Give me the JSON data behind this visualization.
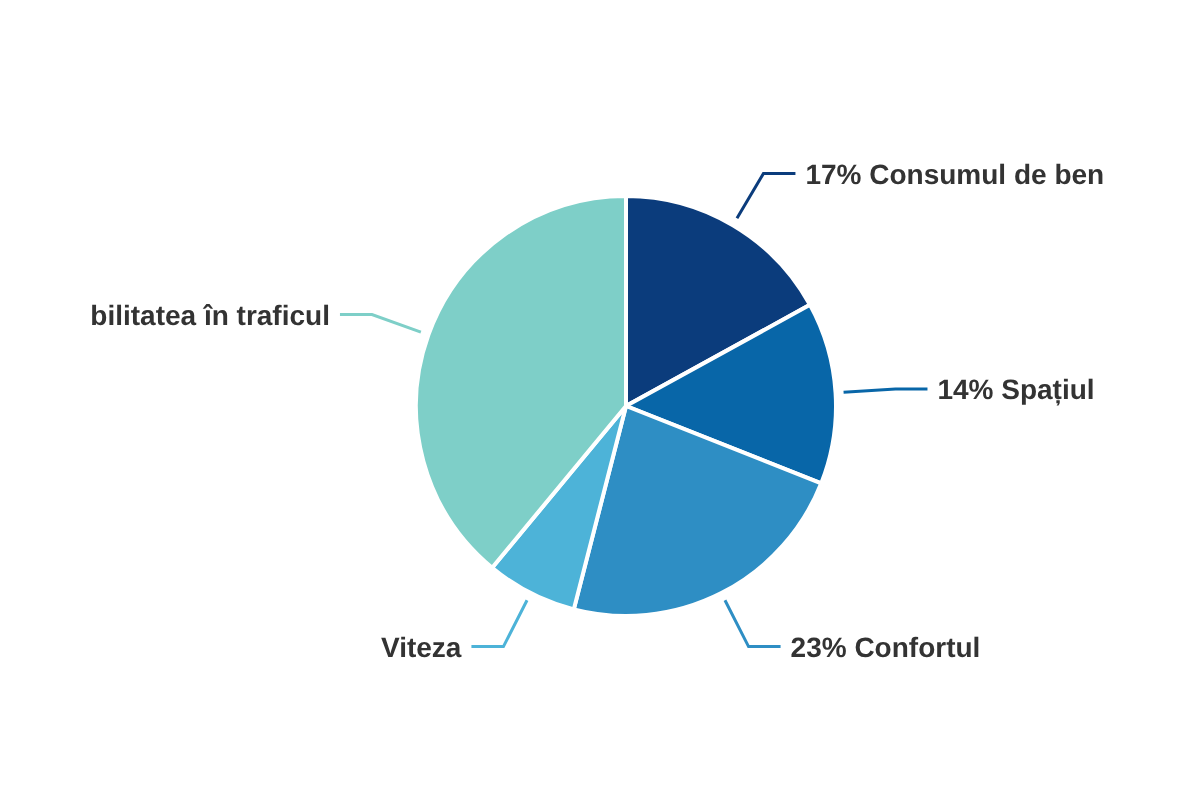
{
  "chart_data": {
    "type": "pie",
    "categories": [
      "Consumul de ben",
      "Spațiul",
      "Confortul",
      "Viteza",
      "bilitatea în traficul"
    ],
    "values": [
      17,
      14,
      23,
      7,
      39
    ],
    "value_labels": [
      "17%",
      "14%",
      "23%",
      null,
      null
    ],
    "colors": [
      "#0b3c7c",
      "#0866a8",
      "#2e8ec4",
      "#4db3d8",
      "#7ecfc8"
    ],
    "legend": false
  }
}
